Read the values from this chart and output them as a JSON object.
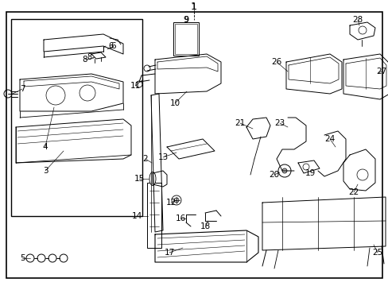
{
  "bg_color": "#ffffff",
  "border_color": "#000000",
  "line_color": "#000000",
  "text_color": "#000000",
  "figsize": [
    4.89,
    3.6
  ],
  "dpi": 100
}
